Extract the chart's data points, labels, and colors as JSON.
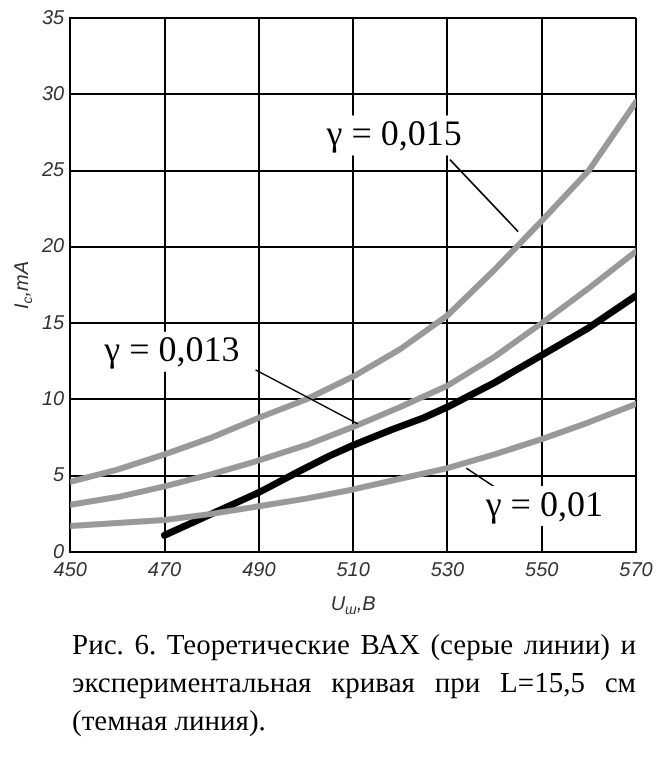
{
  "chart_data": {
    "type": "line",
    "xlabel": "U$_{ш}$,B",
    "ylabel": "I$_{c}$,mA",
    "x": [
      450,
      460,
      470,
      480,
      490,
      500,
      510,
      520,
      530,
      540,
      550,
      560,
      570
    ],
    "xlim": [
      450,
      570
    ],
    "xticks": [
      450,
      470,
      490,
      510,
      530,
      550,
      570
    ],
    "ylim": [
      0,
      35
    ],
    "yticks": [
      0,
      5,
      10,
      15,
      20,
      25,
      30,
      35
    ],
    "grid": true,
    "legend": false,
    "marker": "none",
    "line_style": "solid",
    "series": [
      {
        "color": "#999999",
        "values": [
          4.6,
          5.4,
          6.4,
          7.5,
          8.8,
          10.0,
          11.5,
          13.3,
          15.5,
          18.5,
          21.7,
          25,
          29.5
        ]
      },
      {
        "color": "#999999",
        "values": [
          3.1,
          3.6,
          4.3,
          5.1,
          6.0,
          7.0,
          8.2,
          9.5,
          10.9,
          12.8,
          15,
          17.3,
          19.7
        ]
      },
      {
        "color": "#999999",
        "values": [
          1.7,
          1.9,
          2.1,
          2.5,
          3.0,
          3.5,
          4.1,
          4.8,
          5.5,
          6.4,
          7.4,
          8.5,
          9.7
        ]
      },
      {
        "color": "#000000",
        "x": [
          470,
          480,
          490,
          498,
          505,
          510,
          518,
          525,
          530,
          540,
          550,
          560,
          570
        ],
        "values": [
          1.1,
          2.5,
          3.9,
          5.2,
          6.3,
          7.0,
          8.0,
          8.8,
          9.5,
          11.1,
          12.9,
          14.7,
          16.8
        ]
      }
    ],
    "annotations": [
      {
        "text": "γ = 0,015",
        "x": 545,
        "y": 21
      },
      {
        "text": "γ = 0,013",
        "x": 511,
        "y": 8.4
      },
      {
        "text": "γ = 0,01",
        "x": 534,
        "y": 5.5
      },
      "Рис. 6. Теоретические ВАХ (серые линии) и экспериментальная кривая при L=15,5 см (темная линия)."
    ]
  }
}
